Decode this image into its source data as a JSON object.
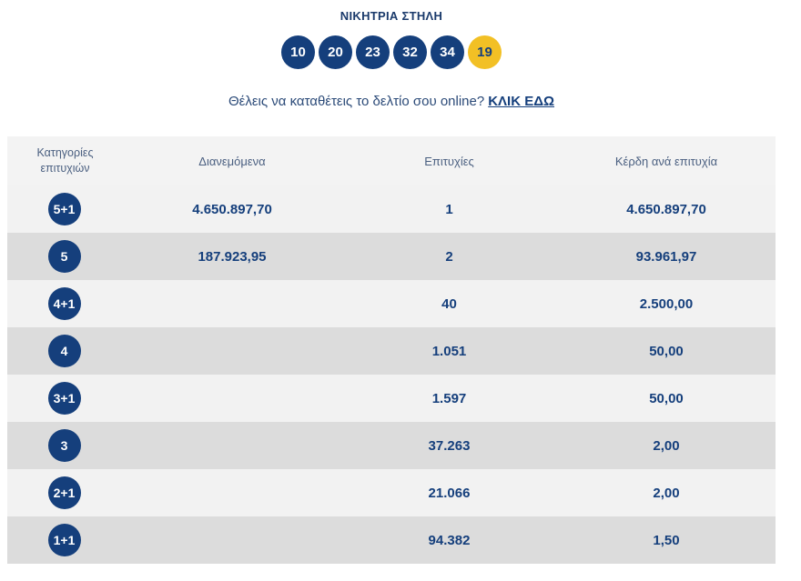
{
  "header": {
    "title": "ΝΙΚΗΤΡΙΑ ΣΤΗΛΗ",
    "numbers": [
      "10",
      "20",
      "23",
      "32",
      "34"
    ],
    "joker": "19"
  },
  "promo": {
    "text": "Θέλεις να καταθέτεις το δελτίο σου online?",
    "link": "ΚΛΙΚ ΕΔΩ"
  },
  "table": {
    "headers": {
      "category": "Κατηγορίες επιτυχιών",
      "distributed": "Διανεμόμενα",
      "winners": "Επιτυχίες",
      "prize": "Κέρδη ανά επιτυχία"
    },
    "rows": [
      {
        "category": "5+1",
        "distributed": "4.650.897,70",
        "winners": "1",
        "prize": "4.650.897,70"
      },
      {
        "category": "5",
        "distributed": "187.923,95",
        "winners": "2",
        "prize": "93.961,97"
      },
      {
        "category": "4+1",
        "distributed": "",
        "winners": "40",
        "prize": "2.500,00"
      },
      {
        "category": "4",
        "distributed": "",
        "winners": "1.051",
        "prize": "50,00"
      },
      {
        "category": "3+1",
        "distributed": "",
        "winners": "1.597",
        "prize": "50,00"
      },
      {
        "category": "3",
        "distributed": "",
        "winners": "37.263",
        "prize": "2,00"
      },
      {
        "category": "2+1",
        "distributed": "",
        "winners": "21.066",
        "prize": "2,00"
      },
      {
        "category": "1+1",
        "distributed": "",
        "winners": "94.382",
        "prize": "1,50"
      }
    ]
  },
  "colors": {
    "navy": "#153f7c",
    "joker_yellow": "#f2c025",
    "row_light": "#f2f2f2",
    "row_dark": "#dcdcdc"
  }
}
